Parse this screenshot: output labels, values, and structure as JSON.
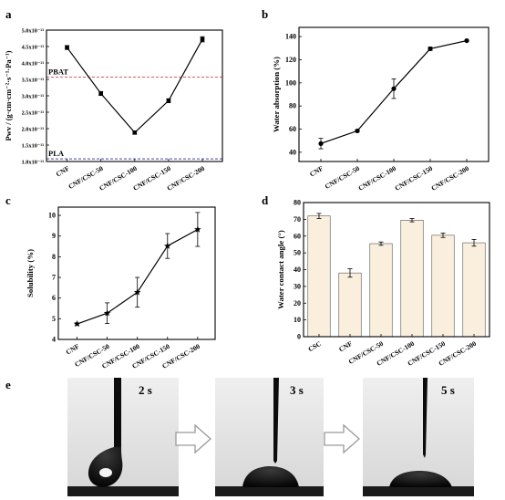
{
  "chart_data": [
    {
      "panel": "a",
      "type": "line",
      "categories": [
        "CNF",
        "CNF/CSC-50",
        "CNF/CSC-100",
        "CNF/CSC-150",
        "CNF/CSC-200"
      ],
      "values": [
        4.47e-13,
        3.07e-13,
        1.88e-13,
        2.85e-13,
        4.72e-13
      ],
      "errors": [
        6e-15,
        6e-15,
        5e-15,
        6e-15,
        8e-15
      ],
      "ylabel": "Pwv / (g·cm·cm⁻²·s⁻¹·Pa⁻¹)",
      "ylim": [
        1e-13,
        5e-13
      ],
      "yticks": [
        "1.0x10⁻¹³",
        "1.5x10⁻¹³",
        "2.0x10⁻¹³",
        "2.5x10⁻¹³",
        "3.0x10⁻¹³",
        "3.5x10⁻¹³",
        "4.0x10⁻¹³",
        "4.5x10⁻¹³",
        "5.0x10⁻¹³"
      ],
      "reference_lines": [
        {
          "label": "PBAT",
          "value": 3.57e-13,
          "color": "#e05a5a"
        },
        {
          "label": "PLA",
          "value": 1.08e-13,
          "color": "#4040c0"
        }
      ]
    },
    {
      "panel": "b",
      "type": "line",
      "categories": [
        "CNF",
        "CNF/CSC-50",
        "CNF/CSC-100",
        "CNF/CSC-150",
        "CNF/CSC-200"
      ],
      "values": [
        47.5,
        58.5,
        95,
        129.5,
        136.5
      ],
      "errors": [
        4.5,
        1,
        8.5,
        1.5,
        0.5
      ],
      "ylabel": "Water absorption (%)",
      "ylim": [
        32,
        148
      ],
      "yticks": [
        40,
        60,
        80,
        100,
        120,
        140
      ]
    },
    {
      "panel": "c",
      "type": "line",
      "categories": [
        "CNF",
        "CNF/CSC-50",
        "CNF/CSC-100",
        "CNF/CSC-150",
        "CNF/CSC-200"
      ],
      "values": [
        4.75,
        5.27,
        6.28,
        8.52,
        9.32
      ],
      "errors": [
        0.05,
        0.5,
        0.72,
        0.6,
        0.82
      ],
      "ylabel": "Solubility (%)",
      "ylim": [
        4,
        10.4
      ],
      "yticks": [
        4,
        5,
        6,
        7,
        8,
        9,
        10
      ]
    },
    {
      "panel": "d",
      "type": "bar",
      "categories": [
        "CSC",
        "CNF",
        "CNF/CSC-50",
        "CNF/CSC-100",
        "CNF/CSC-150",
        "CNF/CSC-200"
      ],
      "values": [
        72,
        38,
        55.5,
        69.5,
        60.5,
        56
      ],
      "errors": [
        1.5,
        2.5,
        1,
        1,
        1.3,
        2
      ],
      "ylabel": "Water contact angle (°)",
      "ylim": [
        0,
        80
      ],
      "yticks": [
        0,
        10,
        20,
        30,
        40,
        50,
        60,
        70,
        80
      ],
      "bar_color": "#faefdc"
    }
  ],
  "panel_labels": {
    "a": "a",
    "b": "b",
    "c": "c",
    "d": "d",
    "e": "e"
  },
  "droplet_frames": [
    {
      "time": "2 s"
    },
    {
      "time": "3 s"
    },
    {
      "time": "5 s"
    }
  ]
}
